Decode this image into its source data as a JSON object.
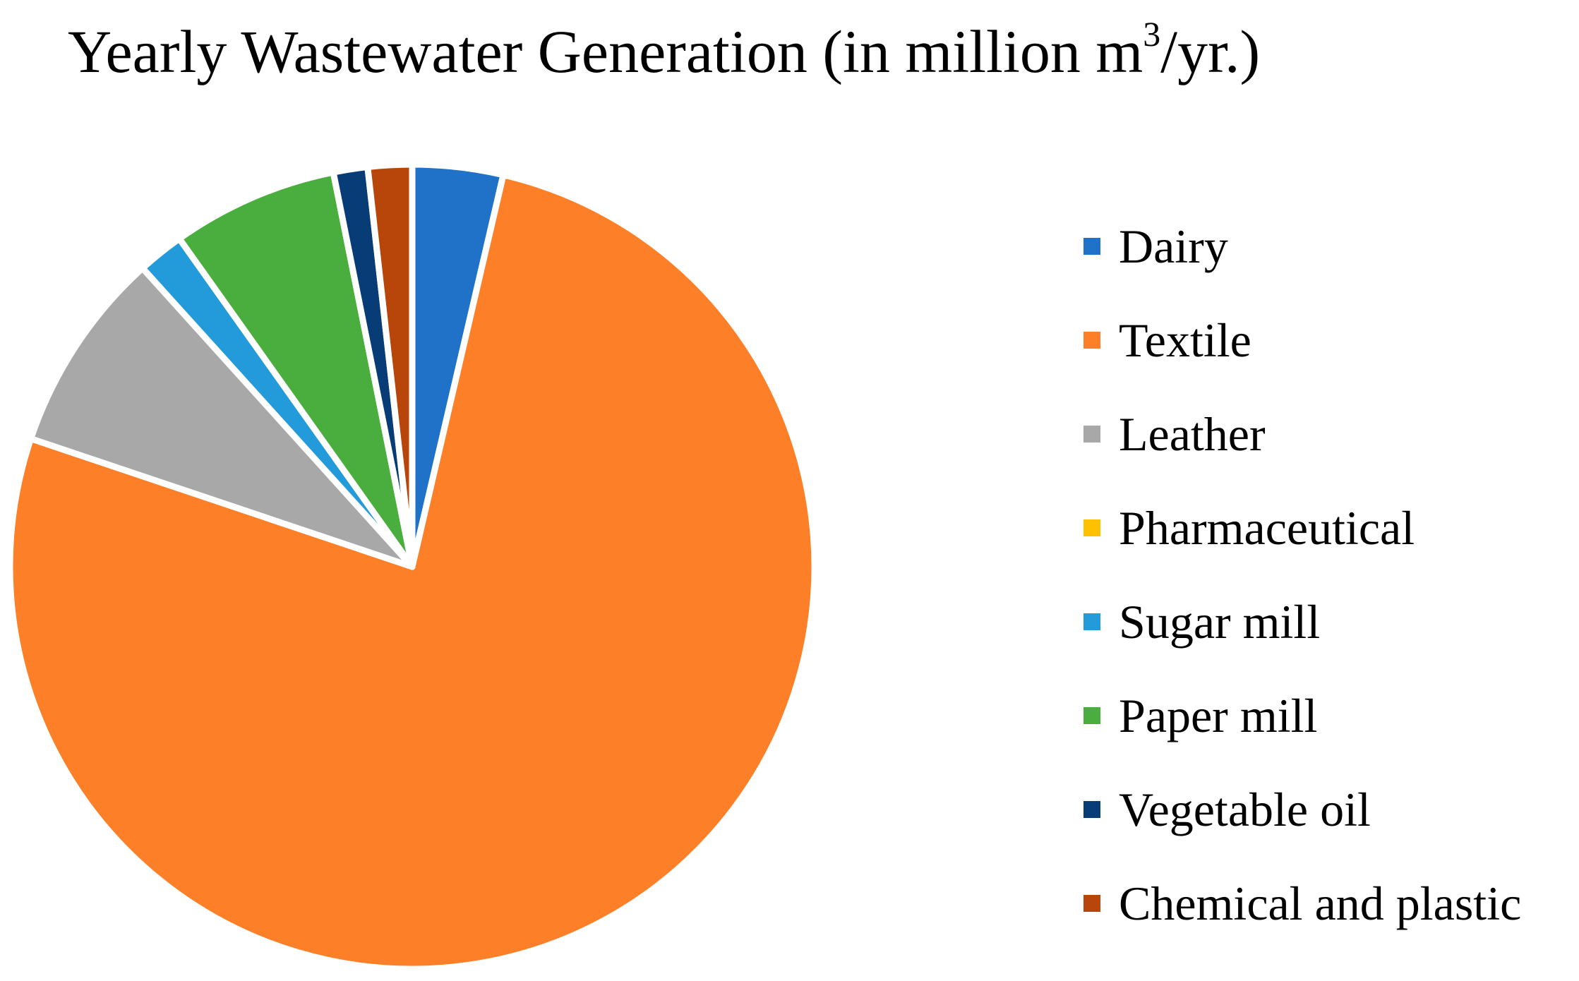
{
  "chart_data": {
    "type": "pie",
    "title_main": "Yearly Wastewater Generation (in million m",
    "title_superscript": "3",
    "title_end": "/yr.)",
    "legend_position": "right",
    "unit": "million m3/yr.",
    "categories": [
      "Dairy",
      "Textile",
      "Leather",
      "Pharmaceutical",
      "Sugar mill",
      "Paper mill",
      "Vegetable oil",
      "Chemical and plastic"
    ],
    "values": [
      3.7,
      77.9,
      8.3,
      0.0,
      1.9,
      6.8,
      1.4,
      1.8
    ],
    "colors": [
      "#1F72C8",
      "#FD7F28",
      "#A8A8A8",
      "#FFC000",
      "#239BDB",
      "#49AE3D",
      "#083C77",
      "#B8460A"
    ],
    "data_labels": false
  }
}
